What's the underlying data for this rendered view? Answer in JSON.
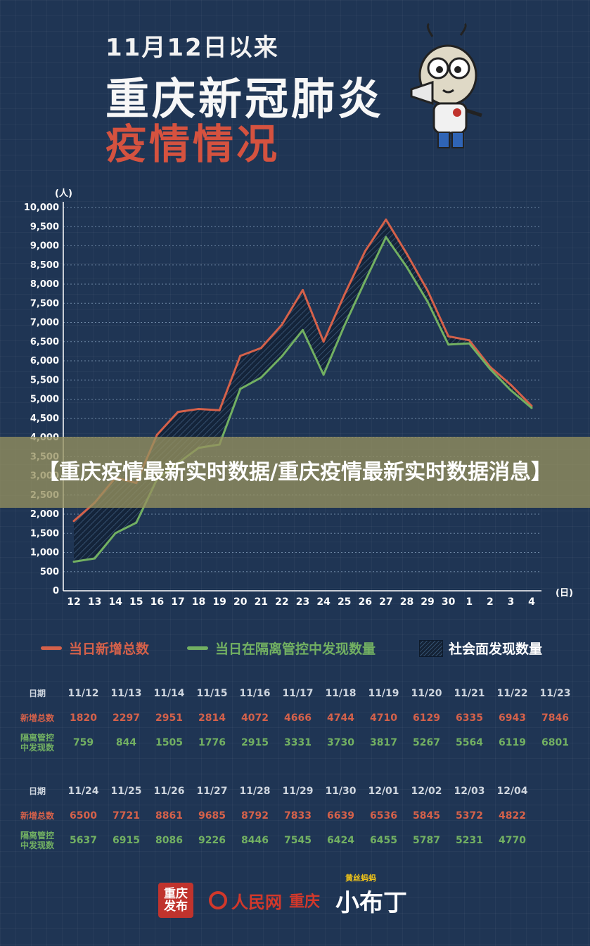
{
  "header": {
    "line1": "11月12日以来",
    "line2": "重庆新冠肺炎",
    "line3": "疫情情况"
  },
  "banner": {
    "text": "【重庆疫情最新实时数据/重庆疫情最新实时数据消息】"
  },
  "legend": {
    "total_label": "当日新增总数",
    "isolation_label": "当日在隔离管控中发现数量",
    "community_label": "社会面发现数量"
  },
  "colors": {
    "background": "#1f3554",
    "total": "#d5614a",
    "isolation": "#72b062",
    "gap_hatch": "#0d1a2b"
  },
  "chart_data": {
    "type": "line",
    "ylabel": "(人)",
    "xlabel": "(日)",
    "ylim": [
      0,
      10000
    ],
    "ytick_step": 500,
    "yticks": [
      "0",
      "500",
      "1,000",
      "1,500",
      "2,000",
      "2,500",
      "3,000",
      "3,500",
      "4,000",
      "4,500",
      "5,000",
      "5,500",
      "6,000",
      "6,500",
      "7,000",
      "7,500",
      "8,000",
      "8,500",
      "9,000",
      "9,500",
      "10,000"
    ],
    "categories": [
      "12",
      "13",
      "14",
      "15",
      "16",
      "17",
      "18",
      "19",
      "20",
      "21",
      "22",
      "23",
      "24",
      "25",
      "26",
      "27",
      "28",
      "29",
      "30",
      "1",
      "2",
      "3",
      "4"
    ],
    "grid": "horizontal-dotted",
    "series": [
      {
        "name": "当日新增总数",
        "color": "#d5614a",
        "values": [
          1820,
          2297,
          2951,
          2814,
          4072,
          4666,
          4744,
          4710,
          6129,
          6335,
          6943,
          7846,
          6500,
          7721,
          8861,
          9685,
          8792,
          7833,
          6639,
          6536,
          5845,
          5372,
          4822
        ]
      },
      {
        "name": "当日在隔离管控中发现数量",
        "color": "#72b062",
        "values": [
          759,
          844,
          1505,
          1776,
          2915,
          3331,
          3730,
          3817,
          5267,
          5564,
          6119,
          6801,
          5637,
          6915,
          8086,
          9226,
          8446,
          7545,
          6424,
          6455,
          5787,
          5231,
          4770
        ]
      }
    ],
    "fill_between": {
      "name": "社会面发现数量",
      "style": "hatch"
    }
  },
  "tables": [
    {
      "date_label": "日期",
      "total_label": "新增总数",
      "iso_label_1": "隔离管控",
      "iso_label_2": "中发现数",
      "dates": [
        "11/12",
        "11/13",
        "11/14",
        "11/15",
        "11/16",
        "11/17",
        "11/18",
        "11/19",
        "11/20",
        "11/21",
        "11/22",
        "11/23"
      ],
      "totals": [
        "1820",
        "2297",
        "2951",
        "2814",
        "4072",
        "4666",
        "4744",
        "4710",
        "6129",
        "6335",
        "6943",
        "7846"
      ],
      "isolation": [
        "759",
        "844",
        "1505",
        "1776",
        "2915",
        "3331",
        "3730",
        "3817",
        "5267",
        "5564",
        "6119",
        "6801"
      ]
    },
    {
      "date_label": "日期",
      "total_label": "新增总数",
      "iso_label_1": "隔离管控",
      "iso_label_2": "中发现数",
      "dates": [
        "11/24",
        "11/25",
        "11/26",
        "11/27",
        "11/28",
        "11/29",
        "11/30",
        "12/01",
        "12/02",
        "12/03",
        "12/04"
      ],
      "totals": [
        "6500",
        "7721",
        "8861",
        "9685",
        "8792",
        "7833",
        "6639",
        "6536",
        "5845",
        "5372",
        "4822"
      ],
      "isolation": [
        "5637",
        "6915",
        "8086",
        "9226",
        "8446",
        "7545",
        "6424",
        "6455",
        "5787",
        "5231",
        "4770"
      ]
    }
  ],
  "footer": {
    "cq_logo_1": "重庆",
    "cq_logo_2": "发布",
    "rmw_name": "人民网",
    "rmw_city": "重庆",
    "xbd_small": "黄丝蚂蚂",
    "xbd_name": "小布丁"
  }
}
